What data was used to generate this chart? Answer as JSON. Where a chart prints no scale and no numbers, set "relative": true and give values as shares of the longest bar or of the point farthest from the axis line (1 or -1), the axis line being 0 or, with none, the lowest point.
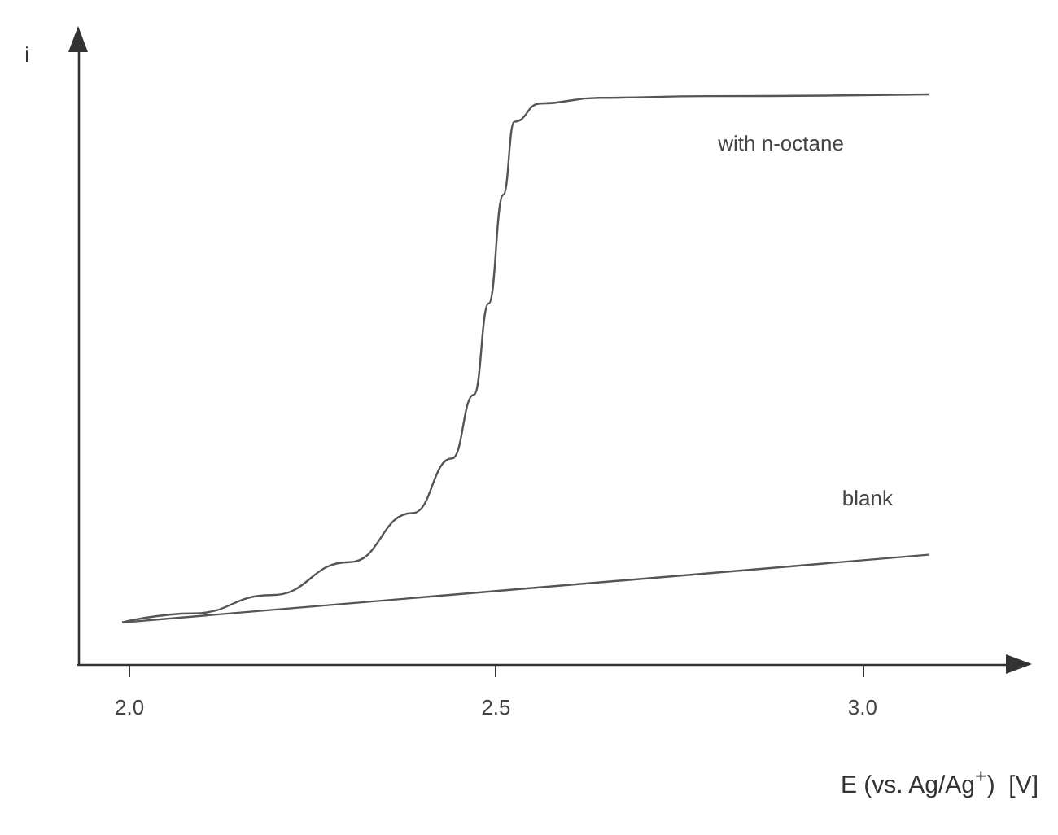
{
  "chart_data": {
    "type": "line",
    "relative": true,
    "xlabel": "E (vs. Ag/Ag$^{+}$)  [V]",
    "ylabel": "i",
    "xlim": [
      1.93,
      3.2
    ],
    "xticks": [
      {
        "value": 2.0,
        "label": "2.0"
      },
      {
        "value": 2.5,
        "label": "2.5"
      },
      {
        "value": 3.0,
        "label": "3.0"
      }
    ],
    "grid": false,
    "legend": false,
    "marker": "none",
    "line_style": "solid",
    "series": [
      {
        "name": "with n-octane",
        "color": "#555555",
        "x": [
          1.99,
          2.086,
          2.193,
          2.3,
          2.386,
          2.44,
          2.47,
          2.49,
          2.51,
          2.525,
          2.56,
          2.64,
          2.79,
          3.09
        ],
        "values": [
          0.073,
          0.089,
          0.121,
          0.179,
          0.265,
          0.361,
          0.473,
          0.633,
          0.824,
          0.952,
          0.984,
          0.994,
          0.997,
          1
        ]
      },
      {
        "name": "blank",
        "color": "#555555",
        "x": [
          1.99,
          3.09
        ],
        "values": [
          0.073,
          0.192
        ]
      }
    ]
  }
}
